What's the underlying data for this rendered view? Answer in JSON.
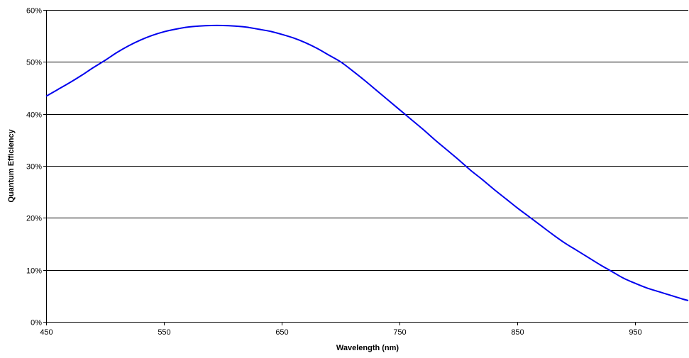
{
  "chart_data": {
    "type": "line",
    "title": "",
    "xlabel": "Wavelength (nm)",
    "ylabel": "Quantum Efficiency",
    "xlim": [
      450,
      995
    ],
    "ylim": [
      0,
      0.6
    ],
    "x_ticks": [
      450,
      550,
      650,
      750,
      850,
      950
    ],
    "x_tick_labels": [
      "450",
      "550",
      "650",
      "750",
      "850",
      "950"
    ],
    "y_ticks": [
      0,
      0.1,
      0.2,
      0.3,
      0.4,
      0.5,
      0.6
    ],
    "y_tick_labels": [
      "0%",
      "10%",
      "20%",
      "30%",
      "40%",
      "50%",
      "60%"
    ],
    "grid": "horizontal",
    "legend": "none",
    "colors": {
      "line": "#0000ee",
      "grid": "#000000",
      "background": "#ffffff"
    },
    "series": [
      {
        "x": [
          450,
          460,
          470,
          480,
          490,
          500,
          510,
          520,
          530,
          540,
          550,
          560,
          570,
          580,
          590,
          600,
          610,
          620,
          630,
          640,
          650,
          660,
          670,
          680,
          690,
          700,
          710,
          720,
          730,
          740,
          750,
          760,
          770,
          780,
          790,
          800,
          810,
          820,
          830,
          840,
          850,
          860,
          870,
          880,
          890,
          900,
          910,
          920,
          930,
          940,
          950,
          960,
          970,
          980,
          990,
          995
        ],
        "y": [
          0.434,
          0.447,
          0.46,
          0.474,
          0.489,
          0.503,
          0.518,
          0.531,
          0.542,
          0.551,
          0.558,
          0.563,
          0.567,
          0.569,
          0.57,
          0.57,
          0.569,
          0.567,
          0.563,
          0.559,
          0.553,
          0.546,
          0.537,
          0.526,
          0.513,
          0.5,
          0.483,
          0.465,
          0.446,
          0.427,
          0.408,
          0.389,
          0.37,
          0.35,
          0.331,
          0.312,
          0.292,
          0.274,
          0.255,
          0.237,
          0.219,
          0.202,
          0.185,
          0.168,
          0.152,
          0.138,
          0.124,
          0.11,
          0.097,
          0.084,
          0.074,
          0.065,
          0.058,
          0.051,
          0.044,
          0.041
        ]
      }
    ]
  }
}
